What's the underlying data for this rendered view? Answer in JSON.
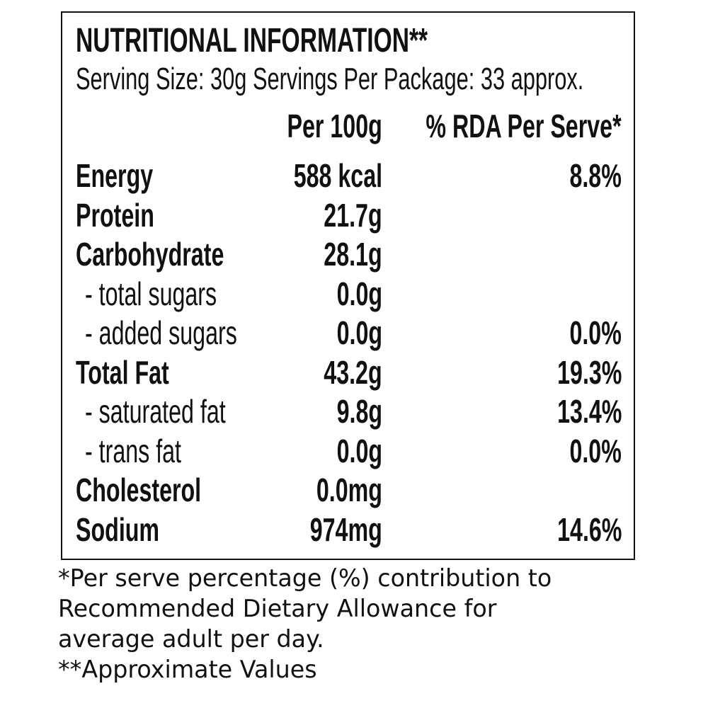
{
  "header": {
    "title": "NUTRITIONAL INFORMATION**",
    "serving": "Serving Size: 30g  Servings Per Package: 33 approx."
  },
  "table": {
    "columns": [
      "Per 100g",
      "% RDA Per Serve*"
    ],
    "rows": [
      {
        "name": "Energy",
        "per_100g": "588 kcal",
        "rda": "8.8%"
      },
      {
        "name": "Protein",
        "per_100g": "21.7g"
      },
      {
        "name": "Carbohydrate",
        "per_100g": "28.1g"
      },
      {
        "name": "- total sugars",
        "per_100g": "0.0g",
        "sub": true
      },
      {
        "name": "- added sugars",
        "per_100g": "0.0g",
        "rda": "0.0%",
        "sub": true
      },
      {
        "name": "Total Fat",
        "per_100g": "43.2g",
        "rda": "19.3%"
      },
      {
        "name": "- saturated fat",
        "per_100g": "9.8g",
        "rda": "13.4%",
        "sub": true
      },
      {
        "name": "- trans fat",
        "per_100g": "0.0g",
        "rda": "0.0%",
        "sub": true
      },
      {
        "name": "Cholesterol",
        "per_100g": "0.0mg"
      },
      {
        "name": "Sodium",
        "per_100g": "974mg",
        "rda": "14.6%"
      }
    ]
  },
  "footnotes": [
    "*Per serve percentage (%) contribution to",
    "Recommended Dietary Allowance for",
    "average adult per day.",
    "**Approximate Values"
  ]
}
